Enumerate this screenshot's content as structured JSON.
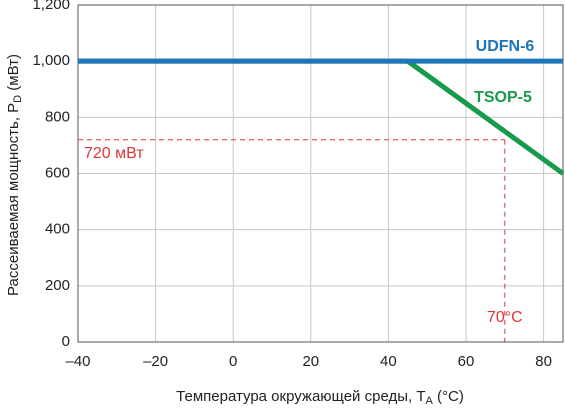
{
  "chart_data": {
    "type": "line",
    "xlabel": [
      "Температура окружающей среды, T",
      "A",
      " (°C)"
    ],
    "ylabel": [
      "Рассеиваемая мощность, P",
      "D",
      " (мВт)"
    ],
    "xlim": [
      -40,
      85
    ],
    "ylim": [
      0,
      1200
    ],
    "xticks": [
      {
        "value": -40,
        "label": "–40"
      },
      {
        "value": -20,
        "label": "–20"
      },
      0,
      20,
      40,
      60,
      80
    ],
    "yticks": [
      0,
      200,
      400,
      600,
      800,
      {
        "value": 1000,
        "label": "1,000"
      },
      {
        "value": 1200,
        "label": "1,200"
      }
    ],
    "grid": true,
    "series": [
      {
        "name": "TSOP-5",
        "color": "#179a4b",
        "x": [
          -40,
          45,
          85
        ],
        "values": [
          1000,
          1000,
          600
        ]
      },
      {
        "name": "UDFN-6",
        "color": "#1f74bd",
        "x": [
          -40,
          85
        ],
        "values": [
          1000,
          1000
        ]
      }
    ],
    "reference": {
      "x": 70,
      "y": 720,
      "color": "#e0353a",
      "x_label": "70°C",
      "y_label": "720 мВт"
    }
  }
}
